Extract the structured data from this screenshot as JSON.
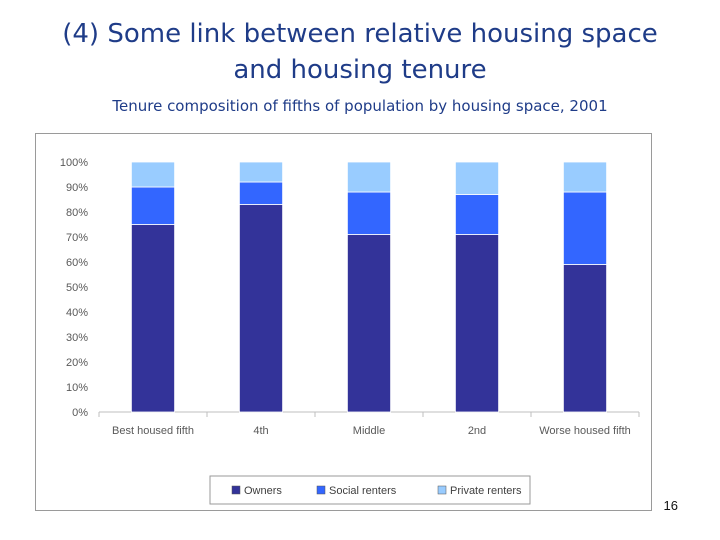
{
  "slide": {
    "title_line1": "(4) Some link between relative housing space",
    "title_line2": "and housing tenure",
    "subtitle": "Tenure composition of fifths of population by housing space, 2001",
    "page_number": "16"
  },
  "chart_data": {
    "type": "bar",
    "stacked": true,
    "categories": [
      "Best housed fifth",
      "4th",
      "Middle",
      "2nd",
      "Worse housed fifth"
    ],
    "series": [
      {
        "name": "Owners",
        "color": "#333399",
        "values": [
          75,
          83,
          71,
          71,
          59
        ]
      },
      {
        "name": "Social renters",
        "color": "#3366ff",
        "values": [
          15,
          9,
          17,
          16,
          29
        ]
      },
      {
        "name": "Private renters",
        "color": "#99ccff",
        "values": [
          10,
          8,
          12,
          13,
          12
        ]
      }
    ],
    "yticks": [
      "0%",
      "10%",
      "20%",
      "30%",
      "40%",
      "50%",
      "60%",
      "70%",
      "80%",
      "90%",
      "100%"
    ],
    "ylim": [
      0,
      100
    ],
    "title": "",
    "xlabel": "",
    "ylabel": "",
    "grid": false,
    "legend_position": "bottom"
  }
}
